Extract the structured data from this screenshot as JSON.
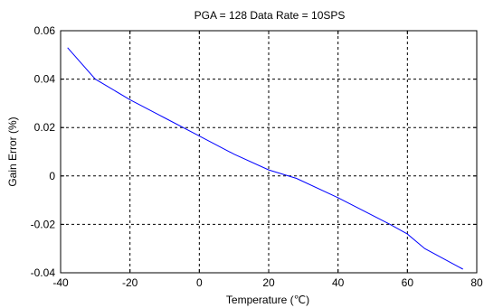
{
  "chart_data": {
    "type": "line",
    "title": "PGA = 128  Data Rate = 10SPS",
    "xlabel": "Temperature (℃)",
    "ylabel": "Gain Error (%)",
    "xlim": [
      -40,
      80
    ],
    "ylim": [
      -0.04,
      0.06
    ],
    "xticks": [
      -40,
      -20,
      0,
      20,
      40,
      60,
      80
    ],
    "xtick_labels": [
      "-40",
      "-20",
      "0",
      "20",
      "40",
      "60",
      "80"
    ],
    "yticks": [
      -0.04,
      -0.02,
      0,
      0.02,
      0.04,
      0.06
    ],
    "ytick_labels": [
      "-0.04",
      "-0.02",
      "0",
      "0.02",
      "0.04",
      "0.06"
    ],
    "grid": true,
    "line_color": "#0000ff",
    "series": [
      {
        "x": [
          -38,
          -30,
          -20,
          -10,
          0,
          10,
          20,
          28,
          40,
          55,
          60,
          65,
          76
        ],
        "y": [
          0.053,
          0.04,
          0.0315,
          0.024,
          0.0165,
          0.009,
          0.0025,
          -0.001,
          -0.009,
          -0.02,
          -0.024,
          -0.03,
          -0.0385
        ]
      }
    ]
  }
}
